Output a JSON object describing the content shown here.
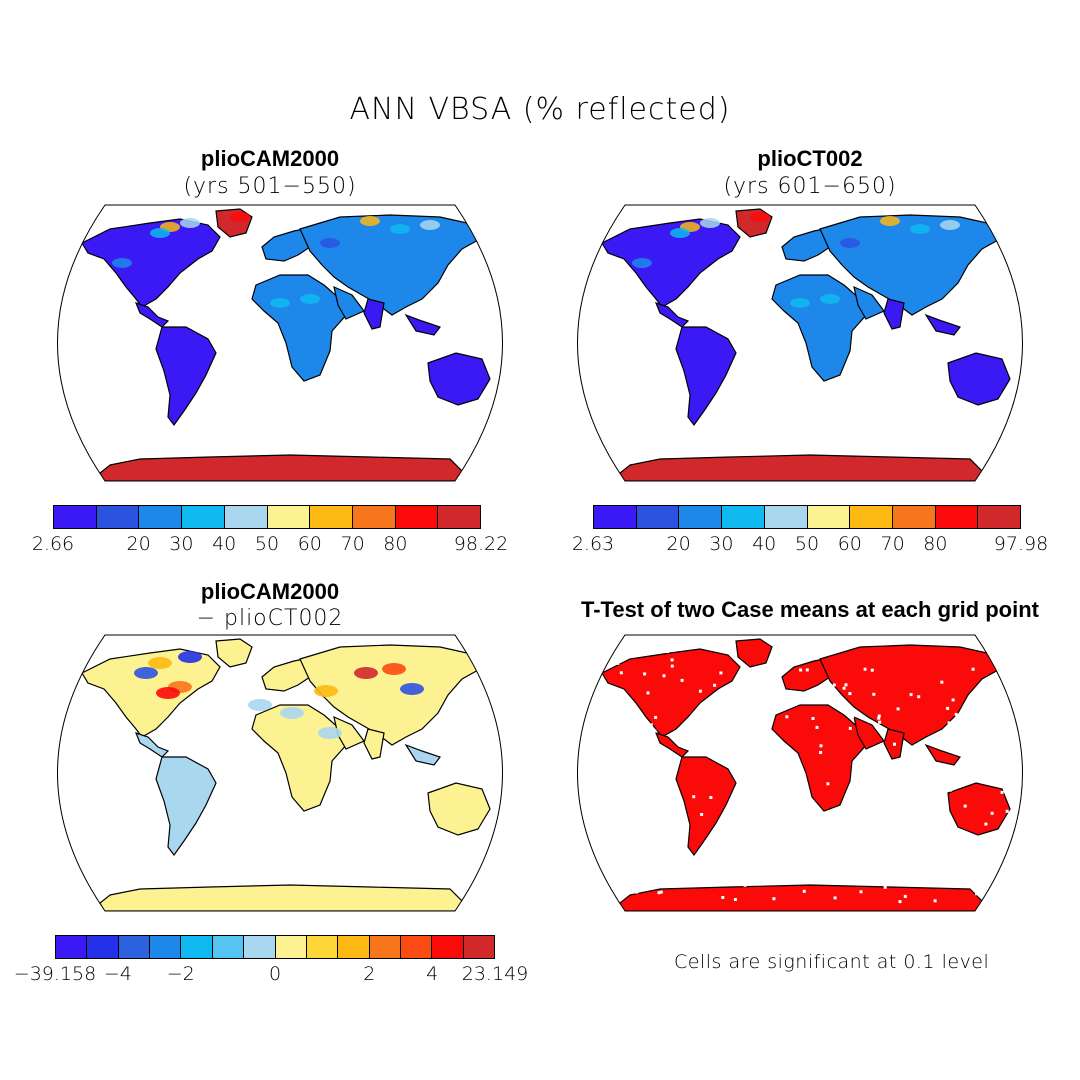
{
  "title": "ANN VBSA (% reflected)",
  "panels": [
    {
      "id": "case1",
      "title": "plioCAM2000",
      "subtitle": "(yrs 501−550)"
    },
    {
      "id": "case2",
      "title": "plioCT002",
      "subtitle": "(yrs 601−650)"
    },
    {
      "id": "diff",
      "title": "plioCAM2000",
      "subtitle": "− plioCT002"
    },
    {
      "id": "ttest",
      "title": "T-Test of two Case means at each grid point",
      "subtitle": ""
    }
  ],
  "colorbars": {
    "case1": {
      "colors": [
        "#3a19f5",
        "#2c52e0",
        "#1e88ea",
        "#10b9f0",
        "#a9d7ef",
        "#fdf292",
        "#fdb814",
        "#f7761c",
        "#fb0a0a",
        "#d1282b"
      ],
      "ticks": [
        "2.66",
        "20",
        "30",
        "40",
        "50",
        "60",
        "70",
        "80",
        "98.22"
      ]
    },
    "case2": {
      "colors": [
        "#3a19f5",
        "#2c52e0",
        "#1e88ea",
        "#10b9f0",
        "#a9d7ef",
        "#fdf292",
        "#fdb814",
        "#f7761c",
        "#fb0a0a",
        "#d1282b"
      ],
      "ticks": [
        "2.63",
        "20",
        "30",
        "40",
        "50",
        "60",
        "70",
        "80",
        "97.98"
      ]
    },
    "diff": {
      "colors": [
        "#3a19f5",
        "#2431e8",
        "#2c62dd",
        "#1e88ea",
        "#10b9f0",
        "#55c4f0",
        "#a9d7ef",
        "#fdf292",
        "#fdd63a",
        "#fdb814",
        "#f7761c",
        "#f94b12",
        "#fb0a0a",
        "#d1282b"
      ],
      "ticks": [
        "−39.158",
        "−4",
        "−2",
        "0",
        "2",
        "4",
        "23.149"
      ]
    }
  },
  "ttest_note": "Cells are significant at 0.1 level",
  "colors": {
    "land_low": "#3a19f5",
    "land_mid": "#1e88ea",
    "antarctica": "#d1282b",
    "diff_land": "#fdf292",
    "diff_neg": "#a9d7ef",
    "sig": "#fb0a0a"
  }
}
